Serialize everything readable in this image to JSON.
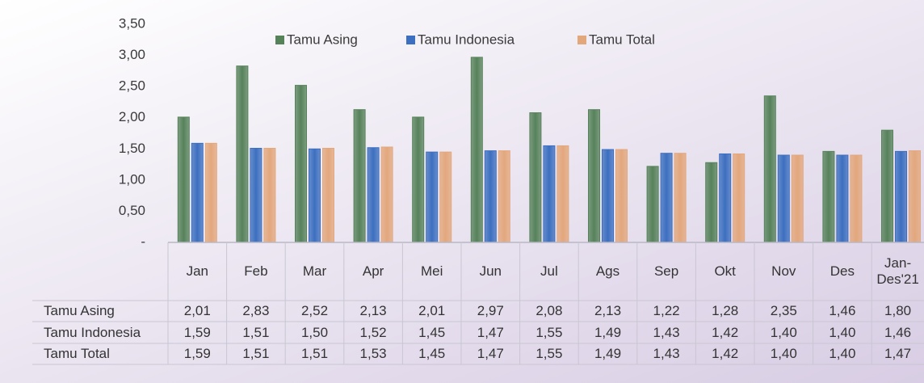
{
  "chart_data": {
    "type": "bar",
    "categories": [
      "Jan",
      "Feb",
      "Mar",
      "Apr",
      "Mei",
      "Jun",
      "Jul",
      "Ags",
      "Sep",
      "Okt",
      "Nov",
      "Des",
      "Jan-Des'21"
    ],
    "series": [
      {
        "name": "Tamu Asing",
        "color": "#56825a",
        "values": [
          2.01,
          2.83,
          2.52,
          2.13,
          2.01,
          2.97,
          2.08,
          2.13,
          1.22,
          1.28,
          2.35,
          1.46,
          1.8
        ],
        "value_labels": [
          "2,01",
          "2,83",
          "2,52",
          "2,13",
          "2,01",
          "2,97",
          "2,08",
          "2,13",
          "1,22",
          "1,28",
          "2,35",
          "1,46",
          "1,80"
        ]
      },
      {
        "name": "Tamu Indonesia",
        "color": "#3c6fc0",
        "values": [
          1.59,
          1.51,
          1.5,
          1.52,
          1.45,
          1.47,
          1.55,
          1.49,
          1.43,
          1.42,
          1.4,
          1.4,
          1.46
        ],
        "value_labels": [
          "1,59",
          "1,51",
          "1,50",
          "1,52",
          "1,45",
          "1,47",
          "1,55",
          "1,49",
          "1,43",
          "1,42",
          "1,40",
          "1,40",
          "1,46"
        ]
      },
      {
        "name": "Tamu Total",
        "color": "#e3a77c",
        "values": [
          1.59,
          1.51,
          1.51,
          1.53,
          1.45,
          1.47,
          1.55,
          1.49,
          1.43,
          1.42,
          1.4,
          1.4,
          1.47
        ],
        "value_labels": [
          "1,59",
          "1,51",
          "1,51",
          "1,53",
          "1,45",
          "1,47",
          "1,55",
          "1,49",
          "1,43",
          "1,42",
          "1,40",
          "1,40",
          "1,47"
        ]
      }
    ],
    "ylim": [
      0,
      3.5
    ],
    "yticks": [
      {
        "value": 0,
        "label": "-"
      },
      {
        "value": 0.5,
        "label": "0,50"
      },
      {
        "value": 1,
        "label": "1,00"
      },
      {
        "value": 1.5,
        "label": "1,50"
      },
      {
        "value": 2,
        "label": "2,00"
      },
      {
        "value": 2.5,
        "label": "2,50"
      },
      {
        "value": 3,
        "label": "3,00"
      },
      {
        "value": 3.5,
        "label": "3,50"
      }
    ],
    "legend": "top"
  }
}
